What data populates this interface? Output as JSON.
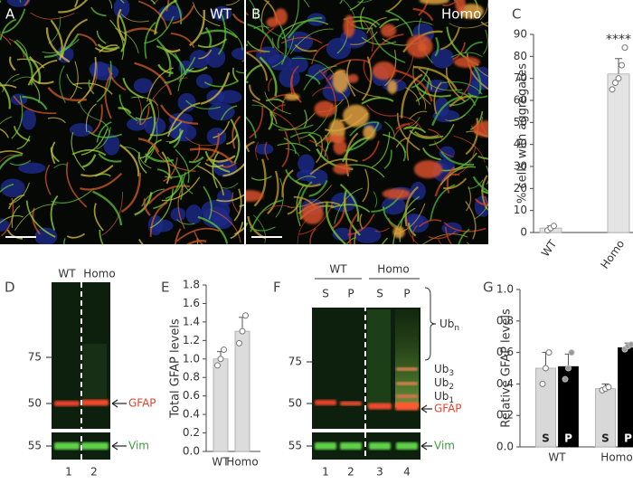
{
  "figure": {
    "panel_letters": [
      "A",
      "B",
      "C",
      "D",
      "E",
      "F",
      "G"
    ],
    "micrographs": [
      {
        "label": "WT"
      },
      {
        "label": "Homo"
      }
    ],
    "blot_d": {
      "lanes_header": [
        "WT",
        "Homo"
      ],
      "markers": [
        75,
        50,
        55
      ],
      "bands": [
        "GFAP",
        "Vim"
      ],
      "lane_numbers": [
        "1",
        "2"
      ]
    },
    "blot_f": {
      "groups": [
        "WT",
        "Homo"
      ],
      "fractions": [
        "S",
        "P",
        "S",
        "P"
      ],
      "markers": [
        75,
        50,
        55
      ],
      "ub_labels": [
        {
          "text": "Ub",
          "sub": "n"
        },
        {
          "text": "Ub",
          "sub": "3"
        },
        {
          "text": "Ub",
          "sub": "2"
        },
        {
          "text": "Ub",
          "sub": "1"
        }
      ],
      "bands": [
        "GFAP",
        "Vim"
      ],
      "lane_numbers": [
        "1",
        "2",
        "3",
        "4"
      ]
    }
  },
  "chart_data": [
    {
      "type": "bar",
      "ylabel": "% cells with aggregates",
      "annotation": "****",
      "categories": [
        "WT",
        "Homo"
      ],
      "values": [
        2,
        72
      ],
      "errors": [
        1,
        7
      ],
      "points": [
        [
          1,
          2,
          3
        ],
        [
          65,
          68,
          70,
          76,
          84
        ]
      ],
      "color": "#e4e4e4",
      "ylim": [
        0,
        90
      ],
      "yticks": [
        0,
        10,
        20,
        30,
        40,
        50,
        60,
        70,
        80,
        90
      ]
    },
    {
      "type": "bar",
      "ylabel": "Total GFAP levels",
      "categories": [
        "WT",
        "Homo"
      ],
      "values": [
        1.0,
        1.3
      ],
      "errors": [
        0.08,
        0.15
      ],
      "points": [
        [
          0.93,
          1.0,
          1.1
        ],
        [
          1.17,
          1.3,
          1.47
        ]
      ],
      "color": "#dcdcdc",
      "ylim": [
        0,
        1.8
      ],
      "yticks": [
        {
          "value": 0,
          "label": "0.0"
        },
        0.2,
        0.4,
        0.6,
        0.8,
        {
          "value": 1,
          "label": "1.0"
        },
        1.2,
        1.4,
        1.6,
        1.8
      ]
    },
    {
      "type": "bar",
      "ylabel": "Relative GFAP levels",
      "categories": [
        "WT",
        "Homo"
      ],
      "series": [
        {
          "name": "S",
          "color": "#d8d8d8",
          "values": [
            0.5,
            0.37
          ],
          "errors": [
            0.1,
            0.03
          ],
          "points": [
            [
              0.4,
              0.5,
              0.6
            ],
            [
              0.36,
              0.37,
              0.38
            ]
          ]
        },
        {
          "name": "P",
          "color": "#000000",
          "values": [
            0.51,
            0.63
          ],
          "errors": [
            0.08,
            0.03
          ],
          "points": [
            [
              0.43,
              0.5,
              0.6
            ],
            [
              0.62,
              0.64,
              0.65
            ]
          ]
        }
      ],
      "ylim": [
        0,
        1.0
      ],
      "yticks": [
        {
          "value": 0,
          "label": "0.0"
        },
        0.2,
        0.4,
        0.6,
        0.8,
        {
          "value": 1,
          "label": "1.0"
        }
      ]
    }
  ]
}
